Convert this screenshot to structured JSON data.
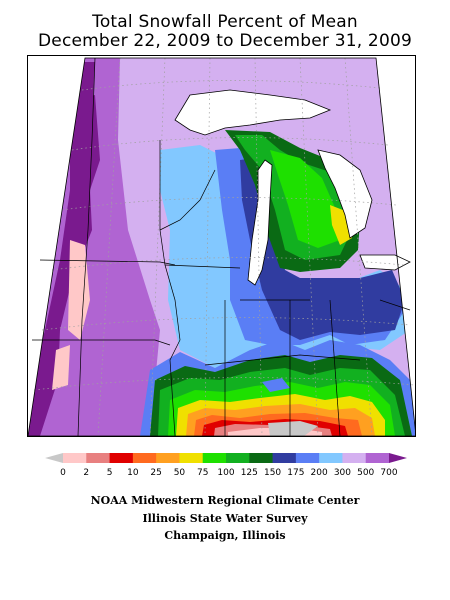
{
  "title": {
    "line1": "Total Snowfall Percent of Mean",
    "line2": "December 22, 2009 to December 31, 2009"
  },
  "legend": {
    "labels": [
      "0",
      "2",
      "5",
      "10",
      "25",
      "50",
      "75",
      "100",
      "125",
      "150",
      "175",
      "200",
      "300",
      "500",
      "700"
    ],
    "colors": [
      "#c8c8c8",
      "#ffc8c8",
      "#e88080",
      "#e00000",
      "#ff6a1f",
      "#ffa020",
      "#f0e000",
      "#1ee000",
      "#12b020",
      "#0a6a14",
      "#303ca0",
      "#5a7ef5",
      "#82c8ff",
      "#d4b0f0",
      "#b064d2",
      "#7a1a8e"
    ]
  },
  "credits": {
    "line1": "NOAA Midwestern Regional Climate Center",
    "line2": "Illinois State Water Survey",
    "line3": "Champaign, Illinois"
  }
}
